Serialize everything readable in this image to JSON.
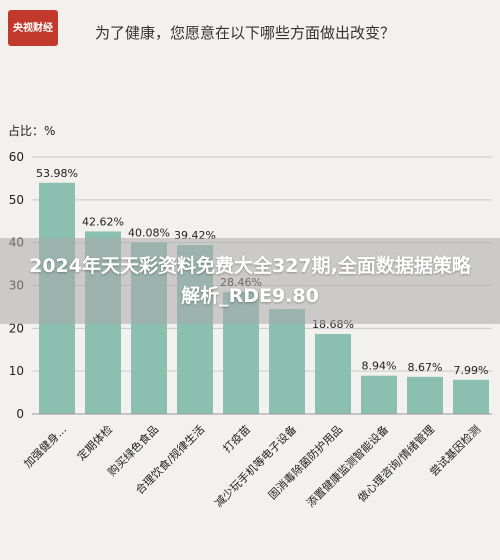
{
  "logo_text": "央视财经",
  "chart_data": {
    "type": "bar",
    "title": "为了健康，您愿意在以下哪些方面做出改变？",
    "ylabel": "占比：%",
    "ylim": [
      0,
      60
    ],
    "yticks": [
      0,
      10,
      20,
      30,
      40,
      50,
      60
    ],
    "categories": [
      "加强健身...",
      "定期体检",
      "购买绿色食品",
      "合理饮食/规律生活",
      "打疫苗",
      "减少玩手机等电子设备",
      "固消毒除菌防护用品",
      "添置健康监测智能设备",
      "做心理咨询/情绪管理",
      "尝试基因检测"
    ],
    "values": [
      53.98,
      42.62,
      40.08,
      39.42,
      28.46,
      24.5,
      18.68,
      8.94,
      8.67,
      7.99
    ],
    "labels": [
      "53.98%",
      "42.62%",
      "40.08%",
      "39.42%",
      "28.46%",
      "",
      "18.68%",
      "8.94%",
      "8.67%",
      "7.99%"
    ],
    "bar_color": "#8bbfb0",
    "grid": true
  },
  "overlay": {
    "text": "2024年天天彩资料免费大全327期,全面数据据策略解析_RDE9.80"
  }
}
